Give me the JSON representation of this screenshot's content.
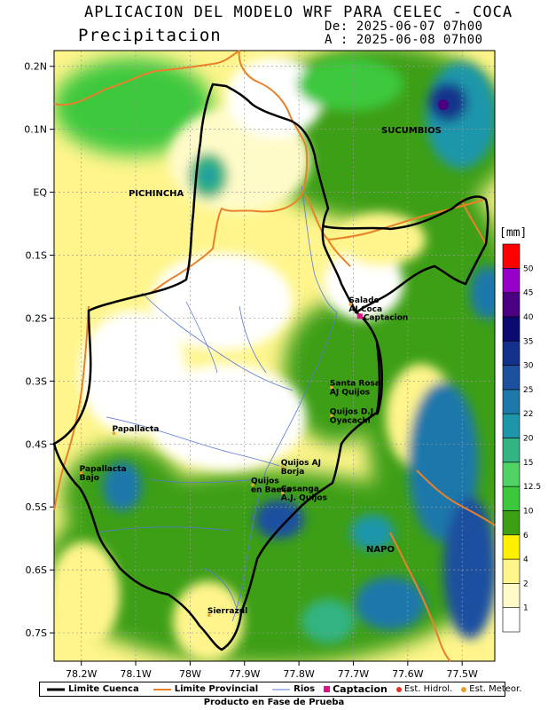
{
  "header": {
    "title": "APLICACION DEL MODELO WRF PARA CELEC - COCA",
    "subtitle": "Precipitacion",
    "date_from": "De: 2025-06-07 07h00",
    "date_to": "A : 2025-06-08 07h00"
  },
  "axes": {
    "lat_ticks": [
      {
        "label": "0.2N",
        "value": 0.2
      },
      {
        "label": "0.1N",
        "value": 0.1
      },
      {
        "label": "EQ",
        "value": 0.0
      },
      {
        "label": "0.1S",
        "value": -0.1
      },
      {
        "label": "0.2S",
        "value": -0.2
      },
      {
        "label": "0.3S",
        "value": -0.3
      },
      {
        "label": "0.4S",
        "value": -0.4
      },
      {
        "label": "0.5S",
        "value": -0.5
      },
      {
        "label": "0.6S",
        "value": -0.6
      },
      {
        "label": "0.7S",
        "value": -0.7
      }
    ],
    "lon_ticks": [
      {
        "label": "78.2W",
        "value": -78.2
      },
      {
        "label": "78.1W",
        "value": -78.1
      },
      {
        "label": "78W",
        "value": -78.0
      },
      {
        "label": "77.9W",
        "value": -77.9
      },
      {
        "label": "77.8W",
        "value": -77.8
      },
      {
        "label": "77.7W",
        "value": -77.7
      },
      {
        "label": "77.6W",
        "value": -77.6
      },
      {
        "label": "77.5W",
        "value": -77.5
      }
    ],
    "lon_range": [
      -78.25,
      -77.44
    ],
    "lat_range": [
      -0.745,
      0.225
    ]
  },
  "regions": {
    "sucumbios": "SUCUMBIOS",
    "pichincha": "PICHINCHA",
    "napo": "NAPO"
  },
  "stations": [
    {
      "id": "salado",
      "lines": [
        "Salado",
        "AJ Coca"
      ],
      "lon": -77.705,
      "lat": -0.178
    },
    {
      "id": "captacion",
      "lines": [
        "Captacion"
      ],
      "lon": -77.688,
      "lat": -0.197
    },
    {
      "id": "santa-rosa",
      "lines": [
        "Santa Rosa",
        "AJ Quijos"
      ],
      "lon": -77.74,
      "lat": -0.31
    },
    {
      "id": "quijos-dj",
      "lines": [
        "Quijos D.J.",
        "Oyacachi"
      ],
      "lon": -77.74,
      "lat": -0.355
    },
    {
      "id": "papallacta",
      "lines": [
        "Papallacta"
      ],
      "lon": -78.14,
      "lat": -0.383
    },
    {
      "id": "quijos-borja",
      "lines": [
        "Quijos AJ",
        "Borja"
      ],
      "lon": -77.83,
      "lat": -0.436
    },
    {
      "id": "papallacta-bajo",
      "lines": [
        "Papallacta",
        "Bajo"
      ],
      "lon": -78.2,
      "lat": -0.446
    },
    {
      "id": "quijos-baeza",
      "lines": [
        "Quijos",
        "en Baeza"
      ],
      "lon": -77.885,
      "lat": -0.465
    },
    {
      "id": "cosanga",
      "lines": [
        "Cosanga",
        "A.J. Quijos"
      ],
      "lon": -77.83,
      "lat": -0.478
    },
    {
      "id": "sierrazul",
      "lines": [
        "Sierrazul"
      ],
      "lon": -77.965,
      "lat": -0.672
    }
  ],
  "colorbar": {
    "unit": "[mm]",
    "colors": [
      "#ffffff",
      "#fffbc8",
      "#fff58c",
      "#ffef00",
      "#3c9f14",
      "#3cc83c",
      "#50d264",
      "#32b482",
      "#1e96aa",
      "#1e78aa",
      "#1e50a0",
      "#14328c",
      "#0a0a70",
      "#4b0082",
      "#9600c8",
      "#ff0000"
    ],
    "labels": [
      "1",
      "2",
      "4",
      "6",
      "10",
      "12.5",
      "15",
      "20",
      "22",
      "25",
      "30",
      "35",
      "40",
      "45",
      "50"
    ]
  },
  "legend": {
    "cuenca": "Limite Cuenca",
    "provincial": "Limite Provincial",
    "rios": "Rios",
    "captacion": "Captacion",
    "hidrol": "Est. Hidrol.",
    "meteor": "Est. Meteor.",
    "colors": {
      "cuenca": "#000000",
      "provincial": "#e8812a",
      "rios": "#5b78d6",
      "captacion": "#e0108c",
      "hidrol": "#e83020",
      "meteor": "#e8a030"
    }
  },
  "footer_note": "Producto en Fase de Prueba"
}
